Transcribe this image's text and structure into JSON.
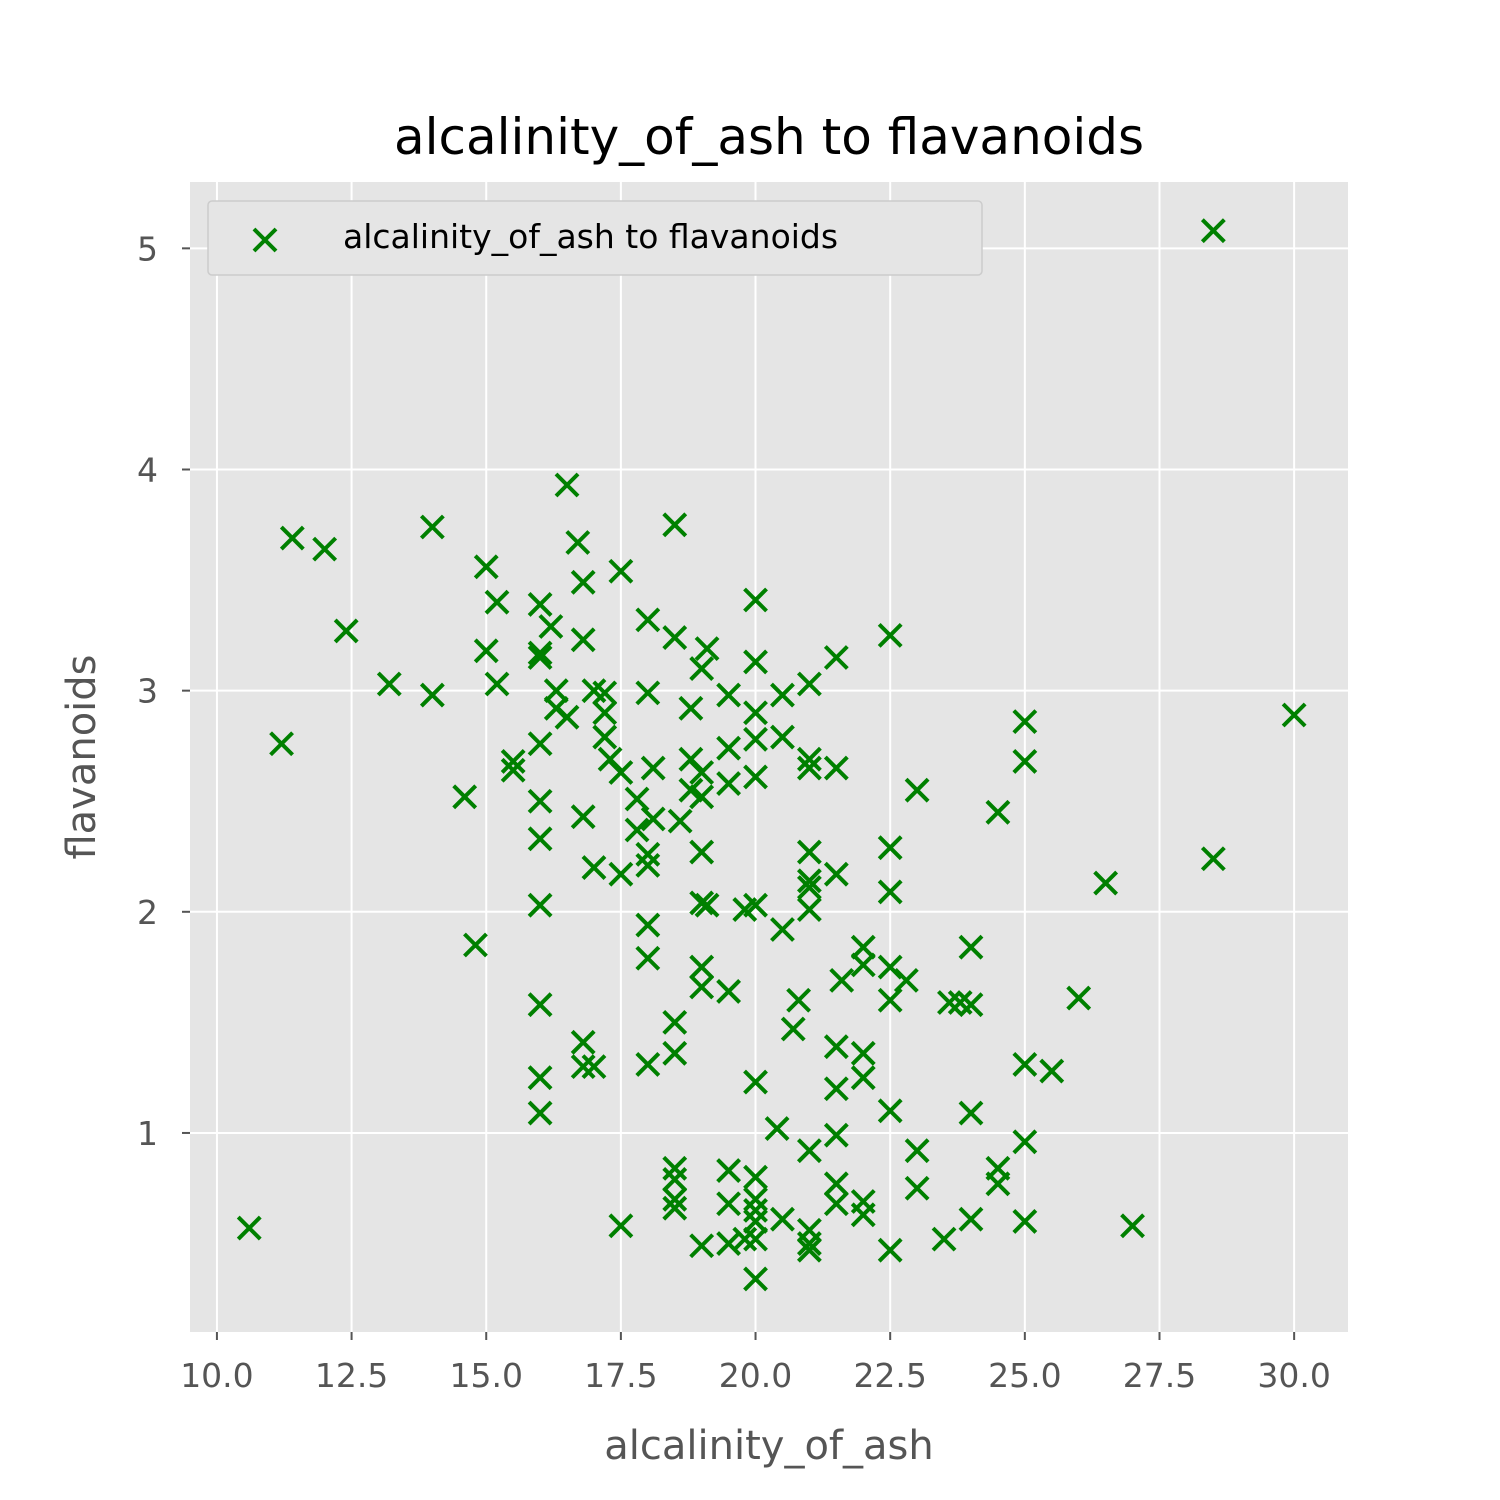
{
  "chart_data": {
    "type": "scatter",
    "title": "alcalinity_of_ash to flavanoids",
    "xlabel": "alcalinity_of_ash",
    "ylabel": "flavanoids",
    "xlim": [
      9.5,
      31
    ],
    "ylim": [
      0.1,
      5.3
    ],
    "xticks": [
      10,
      12.5,
      15,
      17.5,
      20,
      22.5,
      25,
      27.5,
      30
    ],
    "xtick_labels": [
      "10.0",
      "12.5",
      "15.0",
      "17.5",
      "20.0",
      "22.5",
      "25.0",
      "27.5",
      "30.0"
    ],
    "yticks": [
      1,
      2,
      3,
      4,
      5
    ],
    "ytick_labels": [
      "1",
      "2",
      "3",
      "4",
      "5"
    ],
    "grid": true,
    "legend_position": "top-left",
    "marker": "x",
    "colors": {
      "marker": "#008000",
      "plot_background": "#e5e5e5",
      "grid": "#ffffff"
    },
    "series": [
      {
        "name": "alcalinity_of_ash to flavanoids",
        "points": [
          [
            28.5,
            5.08
          ],
          [
            10.6,
            0.57
          ],
          [
            11.2,
            2.76
          ],
          [
            11.4,
            3.69
          ],
          [
            12.0,
            3.64
          ],
          [
            12.4,
            3.27
          ],
          [
            13.2,
            3.03
          ],
          [
            14.0,
            3.74
          ],
          [
            14.0,
            2.98
          ],
          [
            14.6,
            2.52
          ],
          [
            14.8,
            1.85
          ],
          [
            15.0,
            3.56
          ],
          [
            15.0,
            3.18
          ],
          [
            15.2,
            3.4
          ],
          [
            15.2,
            3.03
          ],
          [
            15.5,
            2.68
          ],
          [
            15.5,
            2.64
          ],
          [
            16.0,
            3.39
          ],
          [
            16.0,
            3.17
          ],
          [
            16.0,
            3.15
          ],
          [
            16.0,
            2.76
          ],
          [
            16.0,
            2.5
          ],
          [
            16.0,
            2.33
          ],
          [
            16.0,
            2.03
          ],
          [
            16.0,
            1.58
          ],
          [
            16.0,
            1.25
          ],
          [
            16.0,
            1.09
          ],
          [
            16.2,
            3.29
          ],
          [
            16.3,
            3.0
          ],
          [
            16.3,
            2.92
          ],
          [
            16.5,
            3.93
          ],
          [
            16.5,
            2.88
          ],
          [
            16.7,
            3.67
          ],
          [
            16.8,
            3.49
          ],
          [
            16.8,
            3.23
          ],
          [
            16.8,
            2.43
          ],
          [
            16.8,
            1.41
          ],
          [
            16.8,
            1.3
          ],
          [
            17.0,
            3.0
          ],
          [
            17.0,
            2.2
          ],
          [
            17.0,
            1.3
          ],
          [
            17.2,
            2.99
          ],
          [
            17.2,
            2.9
          ],
          [
            17.2,
            2.79
          ],
          [
            17.3,
            2.69
          ],
          [
            17.5,
            3.54
          ],
          [
            17.5,
            2.63
          ],
          [
            17.5,
            2.17
          ],
          [
            17.5,
            0.58
          ],
          [
            17.8,
            2.51
          ],
          [
            17.8,
            2.37
          ],
          [
            18.0,
            3.32
          ],
          [
            18.0,
            2.99
          ],
          [
            18.0,
            2.26
          ],
          [
            18.0,
            2.21
          ],
          [
            18.0,
            1.94
          ],
          [
            18.0,
            1.79
          ],
          [
            18.0,
            1.31
          ],
          [
            18.1,
            2.65
          ],
          [
            18.1,
            2.42
          ],
          [
            18.5,
            3.75
          ],
          [
            18.5,
            3.24
          ],
          [
            18.5,
            1.5
          ],
          [
            18.5,
            1.36
          ],
          [
            18.5,
            0.84
          ],
          [
            18.5,
            0.79
          ],
          [
            18.5,
            0.7
          ],
          [
            18.5,
            0.66
          ],
          [
            18.6,
            2.41
          ],
          [
            18.8,
            2.92
          ],
          [
            18.8,
            2.69
          ],
          [
            18.8,
            2.55
          ],
          [
            19.0,
            3.1
          ],
          [
            19.0,
            2.63
          ],
          [
            19.0,
            2.52
          ],
          [
            19.0,
            2.27
          ],
          [
            19.0,
            2.04
          ],
          [
            19.0,
            1.75
          ],
          [
            19.0,
            1.66
          ],
          [
            19.0,
            0.49
          ],
          [
            19.1,
            3.19
          ],
          [
            19.1,
            2.03
          ],
          [
            19.5,
            2.98
          ],
          [
            19.5,
            2.74
          ],
          [
            19.5,
            2.58
          ],
          [
            19.5,
            1.64
          ],
          [
            19.5,
            0.83
          ],
          [
            19.5,
            0.68
          ],
          [
            19.5,
            0.5
          ],
          [
            19.8,
            2.01
          ],
          [
            19.8,
            0.52
          ],
          [
            20.0,
            3.41
          ],
          [
            20.0,
            3.13
          ],
          [
            20.0,
            2.9
          ],
          [
            20.0,
            2.78
          ],
          [
            20.0,
            2.61
          ],
          [
            20.0,
            2.03
          ],
          [
            20.0,
            1.23
          ],
          [
            20.0,
            0.8
          ],
          [
            20.0,
            0.7
          ],
          [
            20.0,
            0.65
          ],
          [
            20.0,
            0.6
          ],
          [
            20.0,
            0.52
          ],
          [
            20.0,
            0.34
          ],
          [
            20.4,
            1.02
          ],
          [
            20.5,
            2.98
          ],
          [
            20.5,
            2.79
          ],
          [
            20.5,
            1.92
          ],
          [
            20.5,
            0.61
          ],
          [
            20.7,
            1.47
          ],
          [
            20.8,
            1.6
          ],
          [
            21.0,
            3.03
          ],
          [
            21.0,
            2.69
          ],
          [
            21.0,
            2.65
          ],
          [
            21.0,
            2.27
          ],
          [
            21.0,
            2.14
          ],
          [
            21.0,
            2.11
          ],
          [
            21.0,
            2.01
          ],
          [
            21.0,
            0.92
          ],
          [
            21.0,
            0.56
          ],
          [
            21.0,
            0.5
          ],
          [
            21.0,
            0.47
          ],
          [
            21.5,
            3.15
          ],
          [
            21.5,
            2.65
          ],
          [
            21.5,
            2.17
          ],
          [
            21.5,
            1.39
          ],
          [
            21.5,
            1.2
          ],
          [
            21.5,
            0.99
          ],
          [
            21.5,
            0.77
          ],
          [
            21.5,
            0.68
          ],
          [
            21.6,
            1.69
          ],
          [
            22.0,
            1.84
          ],
          [
            22.0,
            1.76
          ],
          [
            22.0,
            1.36
          ],
          [
            22.0,
            1.25
          ],
          [
            22.0,
            0.69
          ],
          [
            22.0,
            0.63
          ],
          [
            22.5,
            3.25
          ],
          [
            22.5,
            2.29
          ],
          [
            22.5,
            2.09
          ],
          [
            22.5,
            1.75
          ],
          [
            22.5,
            1.6
          ],
          [
            22.5,
            1.1
          ],
          [
            22.5,
            0.47
          ],
          [
            22.8,
            1.69
          ],
          [
            23.0,
            2.55
          ],
          [
            23.0,
            0.92
          ],
          [
            23.0,
            0.75
          ],
          [
            23.5,
            0.52
          ],
          [
            23.6,
            1.59
          ],
          [
            23.8,
            1.59
          ],
          [
            24.0,
            1.84
          ],
          [
            24.0,
            1.58
          ],
          [
            24.0,
            1.09
          ],
          [
            24.0,
            0.61
          ],
          [
            24.5,
            2.45
          ],
          [
            24.5,
            0.84
          ],
          [
            24.5,
            0.77
          ],
          [
            25.0,
            2.86
          ],
          [
            25.0,
            2.68
          ],
          [
            25.0,
            1.31
          ],
          [
            25.0,
            0.96
          ],
          [
            25.0,
            0.6
          ],
          [
            25.5,
            1.28
          ],
          [
            26.0,
            1.61
          ],
          [
            26.5,
            2.13
          ],
          [
            27.0,
            0.58
          ],
          [
            28.5,
            2.24
          ],
          [
            30.0,
            2.89
          ]
        ]
      }
    ]
  }
}
